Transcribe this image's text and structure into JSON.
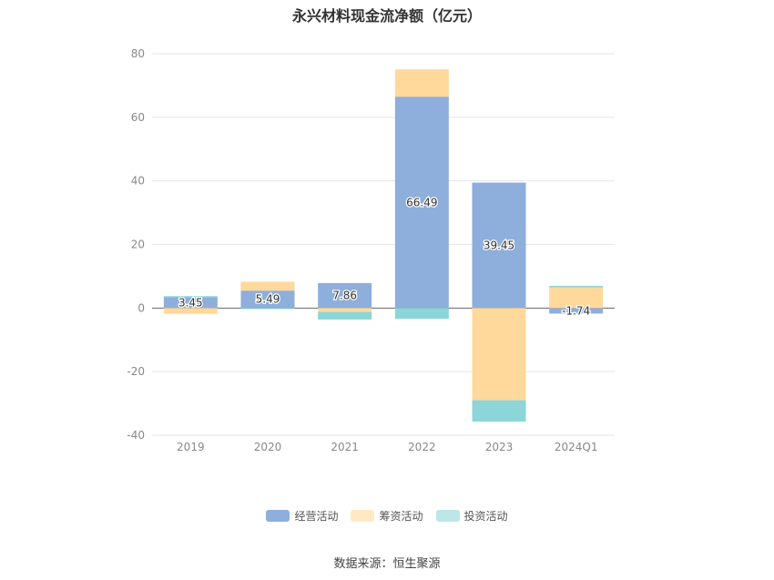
{
  "title": "永兴材料现金流净额（亿元）",
  "source": "数据来源：恒生聚源",
  "colors": {
    "operating": "#8eaedc",
    "financing": "#ffd99b",
    "investing": "#8cd5d8"
  },
  "chart_data": {
    "type": "bar",
    "stacked": true,
    "title": "永兴材料现金流净额（亿元）",
    "categories": [
      "2019",
      "2020",
      "2021",
      "2022",
      "2023",
      "2024Q1"
    ],
    "ylim": [
      -40,
      80
    ],
    "yticks": [
      80,
      60,
      40,
      20,
      0,
      -20,
      -40
    ],
    "grid": true,
    "legend_position": "bottom",
    "series": [
      {
        "name": "经营活动",
        "key": "operating",
        "values": [
          3.45,
          5.49,
          7.86,
          66.49,
          39.45,
          -1.74
        ]
      },
      {
        "name": "筹资活动",
        "key": "financing",
        "values": [
          -1.8,
          2.8,
          -1.2,
          8.6,
          -29.0,
          6.5
        ]
      },
      {
        "name": "投资活动",
        "key": "investing",
        "values": [
          0.3,
          -0.3,
          -2.4,
          -3.4,
          -6.7,
          0.5
        ]
      }
    ],
    "data_labels": [
      "3.45",
      "5.49",
      "7.86",
      "66.49",
      "39.45",
      "-1.74"
    ]
  }
}
